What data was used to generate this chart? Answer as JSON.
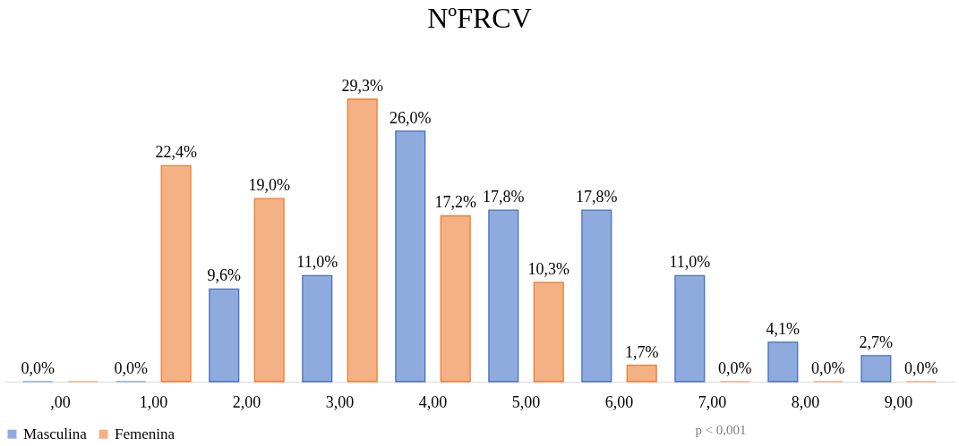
{
  "chart_data": {
    "type": "bar",
    "title": "NºFRCV",
    "categories": [
      ",00",
      "1,00",
      "2,00",
      "3,00",
      "4,00",
      "5,00",
      "6,00",
      "7,00",
      "8,00",
      "9,00"
    ],
    "series": [
      {
        "name": "Masculina",
        "color": "#8faadc",
        "values": [
          0,
          0,
          9.6,
          11.0,
          26.0,
          17.8,
          17.8,
          11.0,
          4.1,
          2.7
        ],
        "value_labels": [
          "0,0%",
          "0,0%",
          "9,6%",
          "11,0%",
          "26,0%",
          "17,8%",
          "17,8%",
          "11,0%",
          "4,1%",
          "2,7%"
        ]
      },
      {
        "name": "Femenina",
        "color": "#f4b183",
        "values": [
          0,
          22.4,
          19.0,
          29.3,
          17.2,
          10.3,
          1.7,
          0,
          0,
          0
        ],
        "value_labels": [
          null,
          "22,4%",
          "19,0%",
          "29,3%",
          "17,2%",
          "10,3%",
          "1,7%",
          "0,0%",
          "0,0%",
          "0,0%"
        ]
      }
    ],
    "legend": "bottom",
    "grid": false,
    "annotations": [
      "p < 0,001"
    ]
  }
}
